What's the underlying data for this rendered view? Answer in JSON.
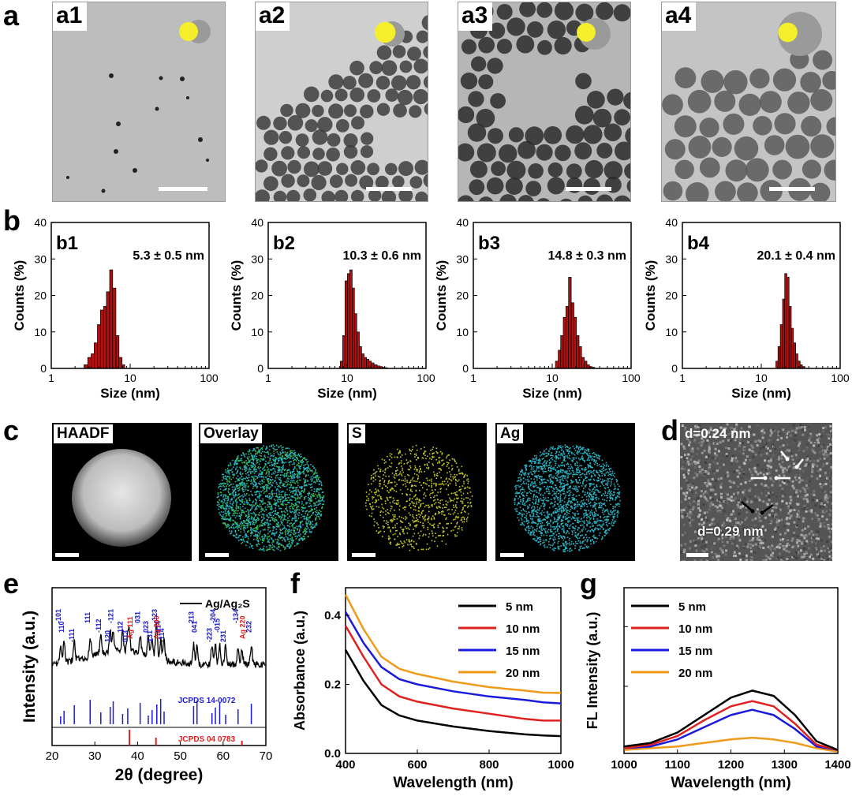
{
  "panel_letters": {
    "a": "a",
    "b": "b",
    "c": "c",
    "d": "d",
    "e": "e",
    "f": "f",
    "g": "g"
  },
  "colors": {
    "hist_bar": "#b01010",
    "shell_yellow": "#f4ef2a",
    "shell_grey": "#9a9a9a",
    "s_map": "#c9c92a",
    "ag_map": "#2ab5c6"
  },
  "tem_panels": [
    {
      "label": "a1",
      "core_fraction": 1.0
    },
    {
      "label": "a2",
      "core_fraction": 0.5
    },
    {
      "label": "a3",
      "core_fraction": 0.33
    },
    {
      "label": "a4",
      "core_fraction": 0.25
    }
  ],
  "eds": {
    "labels": [
      "HAADF",
      "Overlay",
      "S",
      "Ag"
    ]
  },
  "hrtem": {
    "d1": "d=0.24 nm",
    "d2": "d=0.29 nm"
  },
  "chart_data": [
    {
      "panel": "b1",
      "type": "bar",
      "title": "b1",
      "annotation": "5.3 ± 0.5 nm",
      "xlabel": "Size (nm)",
      "ylabel": "Counts (%)",
      "xscale": "log",
      "xlim": [
        1,
        100
      ],
      "ylim": [
        0,
        40
      ],
      "xticks": [
        "1",
        "10",
        "100"
      ],
      "yticks": [
        "0",
        "10",
        "20",
        "30",
        "40"
      ],
      "bins": [
        2.6,
        2.9,
        3.2,
        3.5,
        3.85,
        4.2,
        4.6,
        5.0,
        5.5,
        6.0,
        6.6,
        7.2,
        7.9
      ],
      "values": [
        1,
        3,
        4,
        7,
        12,
        16,
        17,
        21,
        27,
        22,
        9,
        3,
        1
      ]
    },
    {
      "panel": "b2",
      "type": "bar",
      "title": "b2",
      "annotation": "10.3 ± 0.6 nm",
      "xlabel": "Size (nm)",
      "ylabel": "Counts (%)",
      "xscale": "log",
      "xlim": [
        1,
        100
      ],
      "ylim": [
        0,
        40
      ],
      "xticks": [
        "1",
        "10",
        "100"
      ],
      "yticks": [
        "0",
        "10",
        "20",
        "30",
        "40"
      ],
      "bins": [
        8.2,
        8.8,
        9.4,
        10.1,
        10.8,
        11.6,
        12.4,
        13.3,
        14.3,
        15.3,
        16.4,
        17.6,
        18.9,
        20.3,
        22,
        24,
        26,
        28,
        30
      ],
      "values": [
        2,
        9,
        24,
        26,
        27,
        22,
        15,
        10,
        6,
        4,
        3,
        2.5,
        2,
        1.5,
        1,
        0.7,
        0.5,
        0.3,
        0.2
      ]
    },
    {
      "panel": "b3",
      "type": "bar",
      "title": "b3",
      "annotation": "14.8 ± 0.3 nm",
      "xlabel": "Size (nm)",
      "ylabel": "Counts (%)",
      "xscale": "log",
      "xlim": [
        1,
        100
      ],
      "ylim": [
        0,
        40
      ],
      "xticks": [
        "1",
        "10",
        "100"
      ],
      "yticks": [
        "0",
        "10",
        "20",
        "30",
        "40"
      ],
      "bins": [
        11,
        11.9,
        12.8,
        13.8,
        14.9,
        16.1,
        17.4,
        18.8,
        20.3,
        21.9,
        23.6,
        25.5,
        27.5,
        29.7,
        32
      ],
      "values": [
        2,
        5,
        9,
        14,
        17,
        25,
        18,
        14,
        9,
        6,
        3,
        2,
        1,
        0.5,
        0.3
      ]
    },
    {
      "panel": "b4",
      "type": "bar",
      "title": "b4",
      "annotation": "20.1 ± 0.4 nm",
      "xlabel": "Size (nm)",
      "ylabel": "Counts (%)",
      "xscale": "log",
      "xlim": [
        1,
        100
      ],
      "ylim": [
        0,
        40
      ],
      "xticks": [
        "1",
        "10",
        "100"
      ],
      "yticks": [
        "0",
        "10",
        "20",
        "30",
        "40"
      ],
      "bins": [
        15.3,
        16.3,
        17.4,
        18.6,
        19.8,
        21.1,
        22.5,
        24,
        25.6,
        27.3,
        29.1,
        31.1,
        33.2
      ],
      "values": [
        2,
        6,
        12,
        19,
        26,
        25,
        17,
        11,
        7,
        4,
        2,
        1,
        0.5
      ]
    },
    {
      "panel": "e",
      "type": "line",
      "ylabel": "Intensity (a.u.)",
      "xlabel": "2θ (degree)",
      "xlim": [
        20,
        70
      ],
      "xticks": [
        "20",
        "30",
        "40",
        "50",
        "60",
        "70"
      ],
      "series": [
        {
          "name": "Ag/Ag₂S"
        }
      ],
      "ref_labels": [
        "JCPDS 14-0072",
        "JCPDS 04 0783"
      ],
      "ag2s_peaks": [
        {
          "x": 22,
          "label": "-101"
        },
        {
          "x": 22.8,
          "label": "110"
        },
        {
          "x": 25.2,
          "label": "-111"
        },
        {
          "x": 28.9,
          "label": "111"
        },
        {
          "x": 31.4,
          "label": "-112"
        },
        {
          "x": 33.6,
          "label": "120"
        },
        {
          "x": 34.3,
          "label": "-121"
        },
        {
          "x": 36.5,
          "label": "112"
        },
        {
          "x": 37.7,
          "label": "013"
        },
        {
          "x": 40.6,
          "label": "031"
        },
        {
          "x": 42.5,
          "label": "023"
        },
        {
          "x": 43.4,
          "label": "131"
        },
        {
          "x": 44.5,
          "label": "-123"
        },
        {
          "x": 45.4,
          "label": "014"
        },
        {
          "x": 46.2,
          "label": "-114"
        },
        {
          "x": 53.1,
          "label": "213"
        },
        {
          "x": 53.9,
          "label": "041"
        },
        {
          "x": 57.4,
          "label": "-223"
        },
        {
          "x": 58.2,
          "label": "-204"
        },
        {
          "x": 59.2,
          "label": "-015"
        },
        {
          "x": 60.6,
          "label": "231"
        },
        {
          "x": 63.5,
          "label": "-134"
        },
        {
          "x": 66.6,
          "label": "232"
        }
      ],
      "ag_peaks": [
        {
          "x": 38.1,
          "label": "Ag 111"
        },
        {
          "x": 44.3,
          "label": "Ag 200"
        },
        {
          "x": 64.4,
          "label": "Ag 220"
        }
      ]
    },
    {
      "panel": "f",
      "type": "line",
      "xlabel": "Wavelength (nm)",
      "ylabel": "Absorbance (a.u.)",
      "xlim": [
        400,
        1000
      ],
      "ylim": [
        0,
        0.48
      ],
      "xticks": [
        "400",
        "600",
        "800",
        "1000"
      ],
      "yticks": [
        "0.0",
        "0.2",
        "0.4"
      ],
      "x": [
        400,
        450,
        500,
        550,
        600,
        700,
        800,
        900,
        950,
        1000
      ],
      "series": [
        {
          "name": "5 nm",
          "color": "#000000",
          "values": [
            0.3,
            0.21,
            0.14,
            0.11,
            0.095,
            0.078,
            0.065,
            0.055,
            0.052,
            0.05
          ]
        },
        {
          "name": "10 nm",
          "color": "#e0201e",
          "values": [
            0.37,
            0.28,
            0.2,
            0.165,
            0.15,
            0.13,
            0.115,
            0.1,
            0.095,
            0.095
          ]
        },
        {
          "name": "15 nm",
          "color": "#1a1adc",
          "values": [
            0.41,
            0.32,
            0.25,
            0.215,
            0.2,
            0.18,
            0.165,
            0.155,
            0.148,
            0.145
          ]
        },
        {
          "name": "20 nm",
          "color": "#f09a1a",
          "values": [
            0.46,
            0.36,
            0.28,
            0.245,
            0.23,
            0.208,
            0.192,
            0.182,
            0.176,
            0.175
          ]
        }
      ]
    },
    {
      "panel": "g",
      "type": "line",
      "xlabel": "Wavelength (nm)",
      "ylabel": "FL Intensity (a.u.)",
      "xlim": [
        1000,
        1400
      ],
      "xticks": [
        "1000",
        "1100",
        "1200",
        "1300",
        "1400"
      ],
      "x": [
        1000,
        1050,
        1100,
        1150,
        1200,
        1240,
        1280,
        1320,
        1360,
        1400
      ],
      "series": [
        {
          "name": "5 nm",
          "color": "#000000",
          "values": [
            0.04,
            0.06,
            0.12,
            0.22,
            0.32,
            0.36,
            0.33,
            0.22,
            0.07,
            0.02
          ]
        },
        {
          "name": "10 nm",
          "color": "#e0201e",
          "values": [
            0.03,
            0.05,
            0.1,
            0.19,
            0.27,
            0.3,
            0.27,
            0.17,
            0.05,
            0.02
          ]
        },
        {
          "name": "15 nm",
          "color": "#1a1adc",
          "values": [
            0.03,
            0.04,
            0.08,
            0.15,
            0.22,
            0.25,
            0.22,
            0.14,
            0.04,
            0.02
          ]
        },
        {
          "name": "20 nm",
          "color": "#f09a1a",
          "values": [
            0.02,
            0.03,
            0.04,
            0.06,
            0.08,
            0.09,
            0.08,
            0.06,
            0.03,
            0.01
          ]
        }
      ]
    }
  ]
}
